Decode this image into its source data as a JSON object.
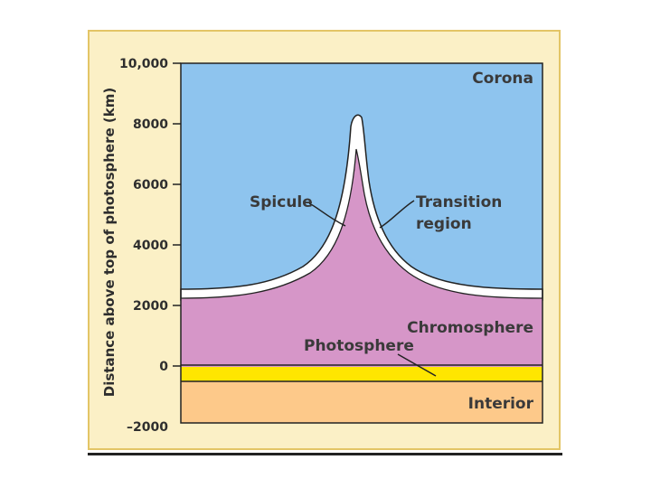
{
  "diagram": {
    "y_axis_label": "Distance above top of photosphere (km)",
    "y_ticks": [
      "10,000",
      "8000",
      "6000",
      "4000",
      "2000",
      "0",
      "–2000"
    ],
    "regions": {
      "corona": "Corona",
      "spicule": "Spicule",
      "transition_line1": "Transition",
      "transition_line2": "region",
      "chromosphere": "Chromosphere",
      "photosphere": "Photosphere",
      "interior": "Interior"
    },
    "colors": {
      "corona": "#8ec4ee",
      "chromosphere": "#d696c8",
      "photosphere": "#ffe600",
      "interior": "#fdc98a",
      "transition": "#ffffff",
      "frame": "#fbf0c6"
    }
  }
}
